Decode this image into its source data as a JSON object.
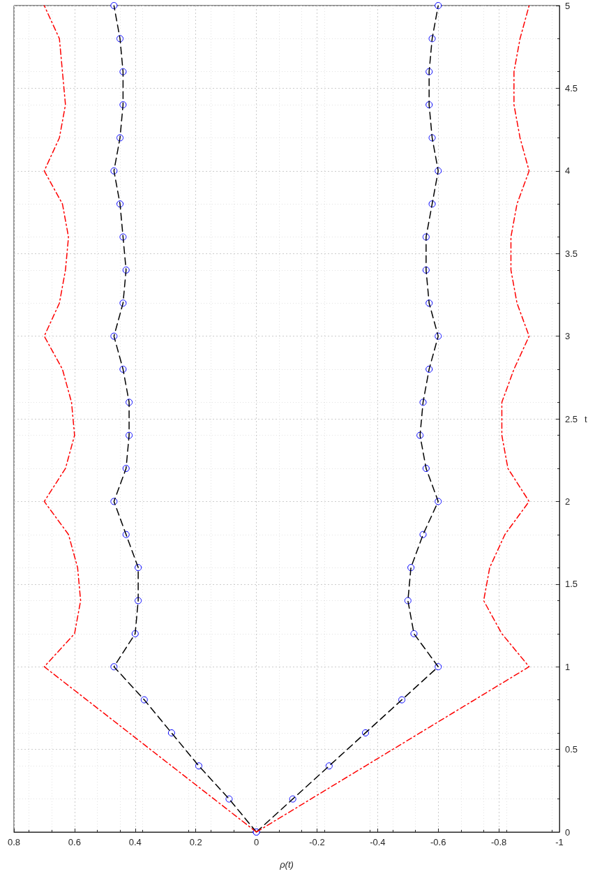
{
  "chart_data": {
    "type": "line",
    "xlabel": "ρ(t)",
    "ylabel": "t",
    "series": [
      {
        "color": "#000000",
        "line_style": "dashed",
        "marker": "none",
        "x": [
          0,
          0.09,
          0.19,
          0.28,
          0.37,
          0.47,
          0.4,
          0.39,
          0.39,
          0.43,
          0.47,
          0.43,
          0.42,
          0.42,
          0.44,
          0.47,
          0.44,
          0.43,
          0.44,
          0.45,
          0.47,
          0.45,
          0.44,
          0.44,
          0.45,
          0.47
        ],
        "values": [
          0,
          0.2,
          0.4,
          0.6,
          0.8,
          1,
          1.2,
          1.4,
          1.6,
          1.8,
          2,
          2.2,
          2.4,
          2.6,
          2.8,
          3,
          3.2,
          3.4,
          3.6,
          3.8,
          4,
          4.2,
          4.4,
          4.6,
          4.8,
          5
        ]
      },
      {
        "type": "scatter",
        "color": "#0000ff",
        "marker": "circle",
        "x": [
          0,
          0.09,
          0.19,
          0.28,
          0.37,
          0.47,
          0.4,
          0.39,
          0.39,
          0.43,
          0.47,
          0.43,
          0.42,
          0.42,
          0.44,
          0.47,
          0.44,
          0.43,
          0.44,
          0.45,
          0.47,
          0.45,
          0.44,
          0.44,
          0.45,
          0.47
        ],
        "values": [
          0,
          0.2,
          0.4,
          0.6,
          0.8,
          1,
          1.2,
          1.4,
          1.6,
          1.8,
          2,
          2.2,
          2.4,
          2.6,
          2.8,
          3,
          3.2,
          3.4,
          3.6,
          3.8,
          4,
          4.2,
          4.4,
          4.6,
          4.8,
          5
        ]
      },
      {
        "color": "#000000",
        "line_style": "dashed",
        "marker": "none",
        "x": [
          0,
          -0.12,
          -0.24,
          -0.36,
          -0.48,
          -0.6,
          -0.52,
          -0.5,
          -0.51,
          -0.55,
          -0.6,
          -0.56,
          -0.54,
          -0.55,
          -0.57,
          -0.6,
          -0.57,
          -0.56,
          -0.56,
          -0.58,
          -0.6,
          -0.58,
          -0.57,
          -0.57,
          -0.58,
          -0.6
        ],
        "values": [
          0,
          0.2,
          0.4,
          0.6,
          0.8,
          1,
          1.2,
          1.4,
          1.6,
          1.8,
          2,
          2.2,
          2.4,
          2.6,
          2.8,
          3,
          3.2,
          3.4,
          3.6,
          3.8,
          4,
          4.2,
          4.4,
          4.6,
          4.8,
          5
        ]
      },
      {
        "type": "scatter",
        "color": "#0000ff",
        "marker": "circle",
        "x": [
          0,
          -0.12,
          -0.24,
          -0.36,
          -0.48,
          -0.6,
          -0.52,
          -0.5,
          -0.51,
          -0.55,
          -0.6,
          -0.56,
          -0.54,
          -0.55,
          -0.57,
          -0.6,
          -0.57,
          -0.56,
          -0.56,
          -0.58,
          -0.6,
          -0.58,
          -0.57,
          -0.57,
          -0.58,
          -0.6
        ],
        "values": [
          0,
          0.2,
          0.4,
          0.6,
          0.8,
          1,
          1.2,
          1.4,
          1.6,
          1.8,
          2,
          2.2,
          2.4,
          2.6,
          2.8,
          3,
          3.2,
          3.4,
          3.6,
          3.8,
          4,
          4.2,
          4.4,
          4.6,
          4.8,
          5
        ]
      },
      {
        "color": "#ff0000",
        "line_style": "dashdot",
        "marker": "none",
        "x": [
          0,
          0.14,
          0.28,
          0.42,
          0.56,
          0.7,
          0.6,
          0.58,
          0.59,
          0.62,
          0.7,
          0.63,
          0.6,
          0.61,
          0.64,
          0.7,
          0.65,
          0.63,
          0.62,
          0.64,
          0.7,
          0.65,
          0.63,
          0.64,
          0.65,
          0.7
        ],
        "values": [
          0,
          0.2,
          0.4,
          0.6,
          0.8,
          1,
          1.2,
          1.4,
          1.6,
          1.8,
          2,
          2.2,
          2.4,
          2.6,
          2.8,
          3,
          3.2,
          3.4,
          3.6,
          3.8,
          4,
          4.2,
          4.4,
          4.6,
          4.8,
          5
        ]
      },
      {
        "color": "#ff0000",
        "line_style": "dashdot",
        "marker": "none",
        "x": [
          0,
          -0.18,
          -0.36,
          -0.54,
          -0.72,
          -0.9,
          -0.81,
          -0.75,
          -0.77,
          -0.82,
          -0.9,
          -0.83,
          -0.81,
          -0.81,
          -0.85,
          -0.9,
          -0.86,
          -0.84,
          -0.84,
          -0.86,
          -0.9,
          -0.87,
          -0.85,
          -0.85,
          -0.87,
          -0.9
        ],
        "values": [
          0,
          0.2,
          0.4,
          0.6,
          0.8,
          1,
          1.2,
          1.4,
          1.6,
          1.8,
          2,
          2.2,
          2.4,
          2.6,
          2.8,
          3,
          3.2,
          3.4,
          3.6,
          3.8,
          4,
          4.2,
          4.4,
          4.6,
          4.8,
          5
        ]
      }
    ],
    "xlim": [
      0.8,
      -1
    ],
    "xticks": [
      0.8,
      0.6,
      0.4,
      0.2,
      0,
      -0.2,
      -0.4,
      -0.6,
      -0.8,
      -1
    ],
    "ylim": [
      0,
      5
    ],
    "yticks": [
      0,
      0.5,
      1,
      1.5,
      2,
      2.5,
      3,
      3.5,
      4,
      4.5,
      5
    ],
    "grid": true
  }
}
